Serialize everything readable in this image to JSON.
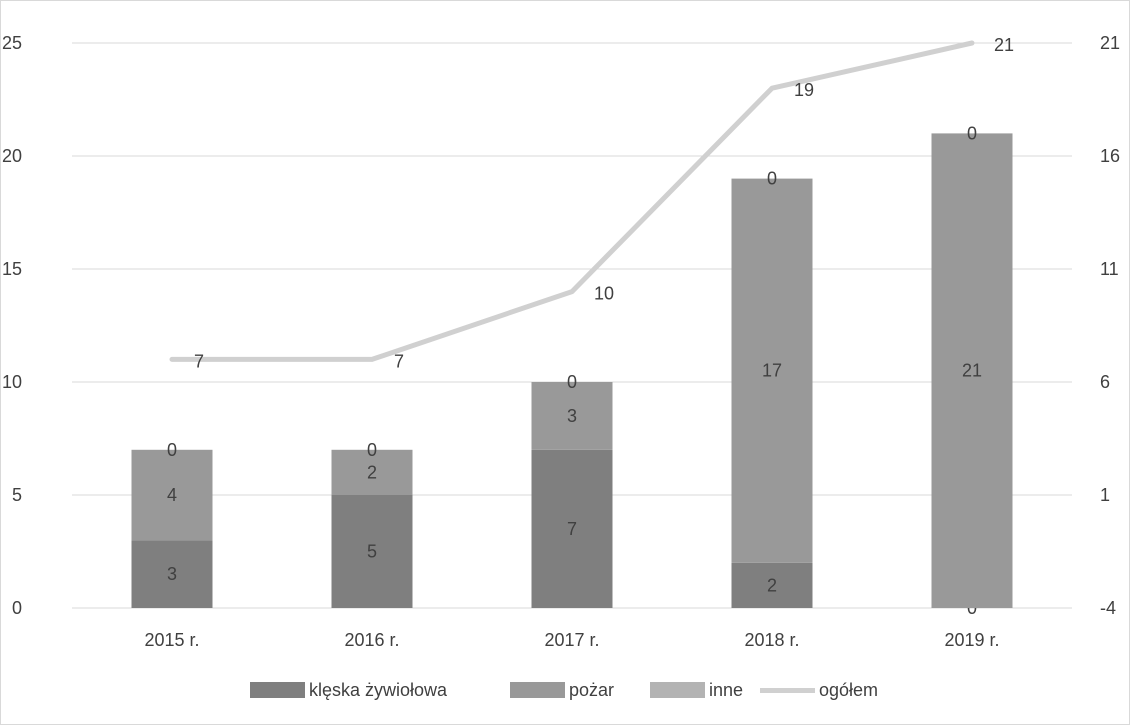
{
  "chart_data": {
    "type": "bar",
    "stacked": true,
    "categories": [
      "2015 r.",
      "2016 r.",
      "2017 r.",
      "2018 r.",
      "2019 r."
    ],
    "series": [
      {
        "name": "klęska żywiołowa",
        "kind": "bar",
        "values": [
          3,
          5,
          7,
          2,
          0
        ],
        "color": "#7f7f7f"
      },
      {
        "name": "pożar",
        "kind": "bar",
        "values": [
          4,
          2,
          3,
          17,
          21
        ],
        "color": "#999999"
      },
      {
        "name": "inne",
        "kind": "bar",
        "values": [
          0,
          0,
          0,
          0,
          0
        ],
        "color": "#b3b3b3"
      },
      {
        "name": "ogółem",
        "kind": "line",
        "axis": "secondary",
        "values": [
          7,
          7,
          10,
          19,
          21
        ],
        "color": "#d0d0d0"
      }
    ],
    "ylim": [
      0,
      25
    ],
    "yticks": [
      "0",
      "5",
      "10",
      "15",
      "20",
      "25"
    ],
    "y2lim": [
      -4,
      21
    ],
    "y2ticks": [
      "-4",
      "1",
      "6",
      "11",
      "16",
      "21"
    ],
    "grid": true,
    "legend_position": "bottom",
    "title": "",
    "xlabel": "",
    "ylabel": ""
  },
  "legend": {
    "items": [
      {
        "label": "klęska żywiołowa",
        "color": "#7f7f7f"
      },
      {
        "label": "pożar",
        "color": "#999999"
      },
      {
        "label": "inne",
        "color": "#b3b3b3"
      },
      {
        "label": "ogółem",
        "color": "#d0d0d0"
      }
    ]
  }
}
